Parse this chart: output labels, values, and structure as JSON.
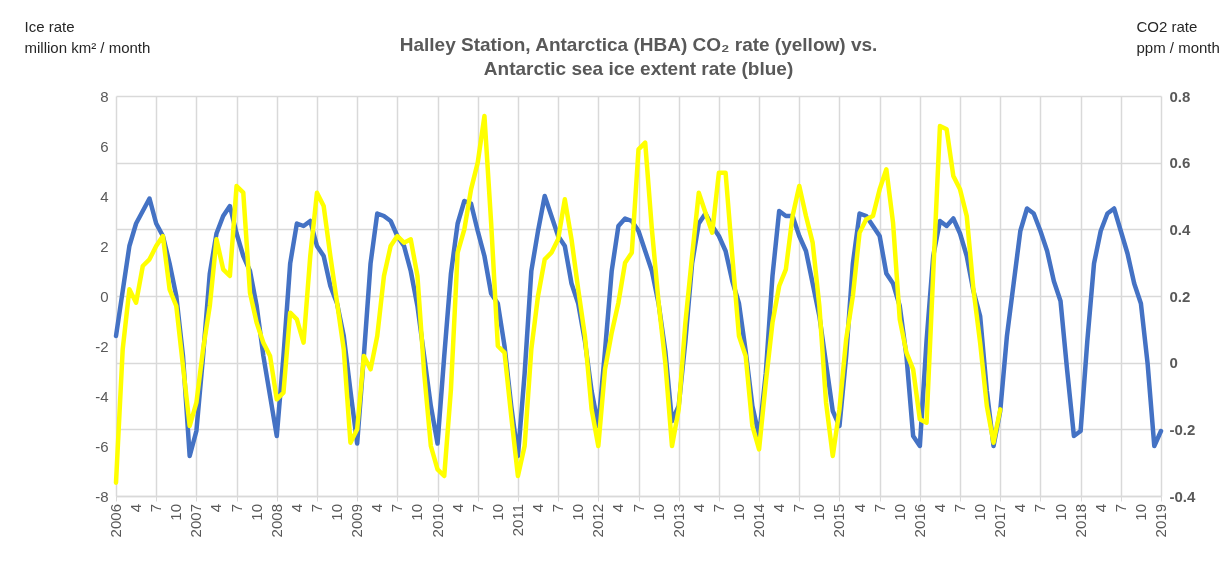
{
  "chart_data": {
    "type": "line",
    "title": "Halley Station, Antarctica (HBA) CO₂ rate (yellow) vs. Antarctic sea ice extent rate (blue)",
    "ylabel": "Ice rate\nmillion km² / month",
    "y2label": "CO2 rate\nppm / month",
    "categories": [
      "2006",
      null,
      null,
      "4",
      null,
      null,
      "7",
      null,
      null,
      "10",
      null,
      null,
      "2007",
      null,
      null,
      "4",
      null,
      null,
      "7",
      null,
      null,
      "10",
      null,
      null,
      "2008",
      null,
      null,
      "4",
      null,
      null,
      "7",
      null,
      null,
      "10",
      null,
      null,
      "2009",
      null,
      null,
      "4",
      null,
      null,
      "7",
      null,
      null,
      "10",
      null,
      null,
      "2010",
      null,
      null,
      "4",
      null,
      null,
      "7",
      null,
      null,
      "10",
      null,
      null,
      "2011",
      null,
      null,
      "4",
      null,
      null,
      "7",
      null,
      null,
      "10",
      null,
      null,
      "2012",
      null,
      null,
      "4",
      null,
      null,
      "7",
      null,
      null,
      "10",
      null,
      null,
      "2013",
      null,
      null,
      "4",
      null,
      null,
      "7",
      null,
      null,
      "10",
      null,
      null,
      "2014",
      null,
      null,
      "4",
      null,
      null,
      "7",
      null,
      null,
      "10",
      null,
      null,
      "2015",
      null,
      null,
      "4",
      null,
      null,
      "7",
      null,
      null,
      "10",
      null,
      null,
      "2016",
      null,
      null,
      "4",
      null,
      null,
      "7",
      null,
      null,
      "10",
      null,
      null,
      "2017",
      null,
      null,
      "4",
      null,
      null,
      "7",
      null,
      null,
      "10",
      null,
      null,
      "2018",
      null,
      null,
      "4",
      null,
      null,
      "7",
      null,
      null,
      "10",
      null,
      null,
      "2019"
    ],
    "series": [
      {
        "color": "#4472c4",
        "axis": "y",
        "values": [
          -1.6,
          0.2,
          2.0,
          2.9,
          3.4,
          3.9,
          2.9,
          2.4,
          1.3,
          0,
          -2.4,
          -6.4,
          -5.4,
          -2.4,
          0.9,
          2.5,
          3.2,
          3.6,
          2.5,
          1.6,
          1.0,
          -0.4,
          -2.4,
          -4.0,
          -5.6,
          -2.4,
          1.3,
          2.9,
          2.8,
          3.0,
          2.0,
          1.6,
          0.4,
          -0.3,
          -1.6,
          -3.8,
          -5.9,
          -2.4,
          1.3,
          3.3,
          3.2,
          3.0,
          2.4,
          2.0,
          1.0,
          -0.4,
          -2.4,
          -4.4,
          -5.9,
          -2.4,
          0.9,
          2.9,
          3.8,
          3.7,
          2.6,
          1.6,
          0.1,
          -0.3,
          -2.0,
          -4.4,
          -6.4,
          -3.1,
          1.0,
          2.6,
          4.0,
          3.2,
          2.4,
          2.0,
          0.5,
          -0.3,
          -1.8,
          -3.8,
          -5.2,
          -2.2,
          1.0,
          2.8,
          3.1,
          3.0,
          2.6,
          1.8,
          1.0,
          -0.3,
          -2.2,
          -5.0,
          -4.4,
          -1.8,
          1.3,
          2.9,
          3.3,
          2.8,
          2.4,
          1.8,
          0.6,
          -0.3,
          -2.2,
          -4.4,
          -5.6,
          -3.1,
          0.8,
          3.4,
          3.2,
          3.2,
          2.4,
          1.8,
          0.5,
          -0.8,
          -2.7,
          -4.6,
          -5.2,
          -2.4,
          1.3,
          3.3,
          3.2,
          2.8,
          2.4,
          0.9,
          0.5,
          -0.4,
          -2.4,
          -5.6,
          -6.0,
          -1.8,
          1.6,
          3.0,
          2.8,
          3.1,
          2.5,
          1.6,
          0.2,
          -0.8,
          -3.8,
          -6.0,
          -4.6,
          -1.6,
          0.5,
          2.6,
          3.5,
          3.3,
          2.6,
          1.8,
          0.6,
          -0.2,
          -3.0,
          -5.6,
          -5.4,
          -1.8,
          1.3,
          2.6,
          3.3,
          3.5,
          2.6,
          1.7,
          0.5,
          -0.3,
          -2.7,
          -6.0,
          -5.4
        ]
      },
      {
        "color": "#ffff00",
        "axis": "y2",
        "values": [
          -0.36,
          0.04,
          0.22,
          0.18,
          0.29,
          0.31,
          0.35,
          0.38,
          0.22,
          0.17,
          -0.01,
          -0.19,
          -0.12,
          0.04,
          0.17,
          0.37,
          0.28,
          0.26,
          0.53,
          0.51,
          0.21,
          0.12,
          0.06,
          0.02,
          -0.11,
          -0.09,
          0.15,
          0.13,
          0.06,
          0.32,
          0.51,
          0.47,
          0.32,
          0.18,
          0.04,
          -0.24,
          -0.2,
          0.02,
          -0.02,
          0.08,
          0.26,
          0.35,
          0.38,
          0.36,
          0.37,
          0.26,
          -0.03,
          -0.25,
          -0.32,
          -0.34,
          -0.08,
          0.33,
          0.4,
          0.52,
          0.6,
          0.74,
          0.42,
          0.05,
          0.03,
          -0.16,
          -0.34,
          -0.25,
          0.04,
          0.2,
          0.31,
          0.33,
          0.37,
          0.49,
          0.37,
          0.22,
          0.08,
          -0.14,
          -0.25,
          -0.02,
          0.09,
          0.18,
          0.3,
          0.33,
          0.64,
          0.66,
          0.4,
          0.18,
          0.0,
          -0.25,
          -0.14,
          0.12,
          0.32,
          0.51,
          0.45,
          0.39,
          0.57,
          0.57,
          0.32,
          0.08,
          0.02,
          -0.19,
          -0.26,
          -0.06,
          0.12,
          0.23,
          0.28,
          0.44,
          0.53,
          0.44,
          0.36,
          0.17,
          -0.12,
          -0.28,
          -0.14,
          0.07,
          0.2,
          0.39,
          0.43,
          0.44,
          0.52,
          0.58,
          0.42,
          0.13,
          0.03,
          -0.02,
          -0.17,
          -0.18,
          0.27,
          0.71,
          0.7,
          0.56,
          0.52,
          0.44,
          0.22,
          0.06,
          -0.13,
          -0.24,
          -0.14,
          null,
          null,
          null,
          null,
          null,
          null,
          null,
          null,
          null,
          null,
          null,
          null,
          null,
          null,
          null,
          null,
          null,
          null,
          null,
          null,
          null,
          null,
          null,
          null
        ]
      }
    ],
    "ylim": [
      -8,
      8
    ],
    "yticks": [
      -8,
      -6,
      -4,
      -2,
      0,
      2,
      4,
      6,
      8
    ],
    "y2lim": [
      -0.4,
      0.8
    ],
    "y2ticks": [
      -0.4,
      -0.2,
      0,
      0.2,
      0.4,
      0.6,
      0.8
    ],
    "grid": true,
    "legend": false,
    "marker": "none",
    "line_style": "solid"
  }
}
